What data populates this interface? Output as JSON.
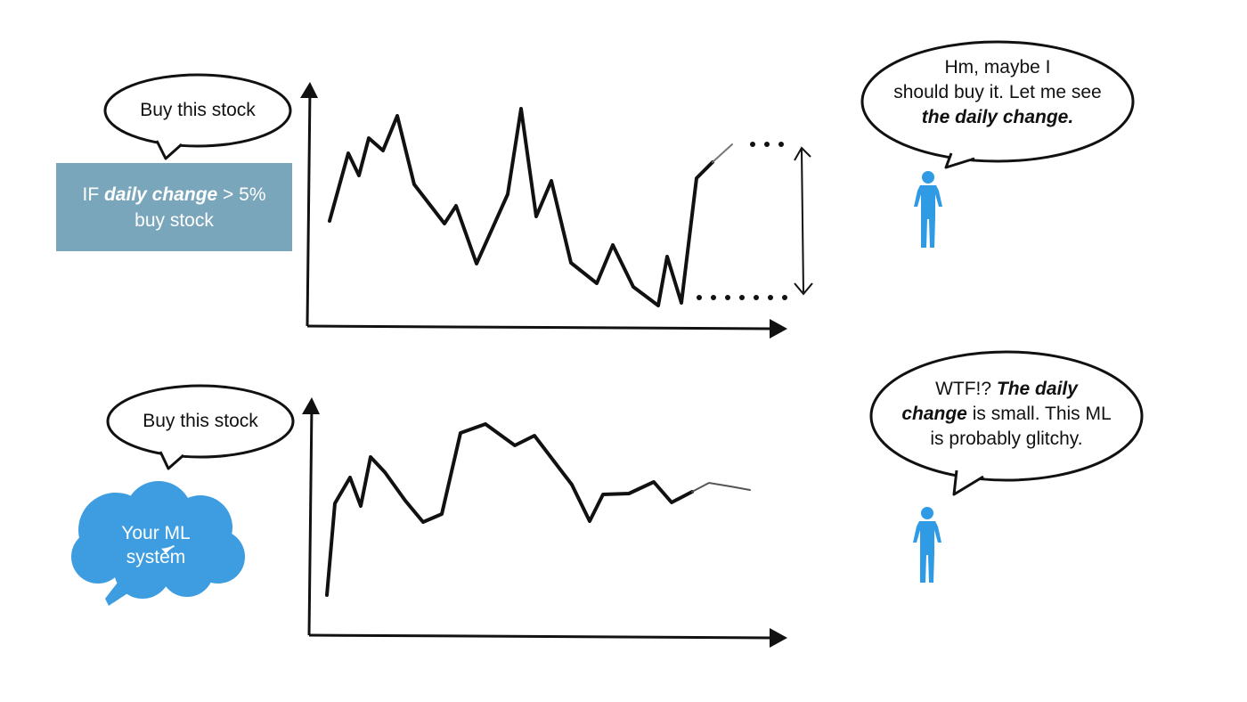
{
  "colors": {
    "ink": "#111111",
    "rule_box": "#7aa6bb",
    "rule_text": "#ffffff",
    "ml_cloud": "#3d9de0",
    "person": "#2f9be4"
  },
  "top_scenario": {
    "speech": "Buy this stock",
    "rule": {
      "prefix": "IF ",
      "feature": "daily change",
      "condition": " > 5%",
      "action": "buy stock"
    },
    "person_thought": {
      "line1": "Hm, maybe I",
      "line2": "should buy it. Let me see",
      "emphasis": "the daily change."
    }
  },
  "bottom_scenario": {
    "speech": "Buy this stock",
    "ml_system": {
      "line1": "Your ML",
      "line2": "system"
    },
    "person_thought": {
      "prefix": "WTF!? ",
      "emphasis_a": "The daily",
      "emphasis_b": "change",
      "rest_line2": " is small. This ML",
      "line3": "is probably glitchy."
    }
  },
  "icons": [
    "person-icon",
    "ml-cloud-icon",
    "speech-bubble-icon"
  ]
}
